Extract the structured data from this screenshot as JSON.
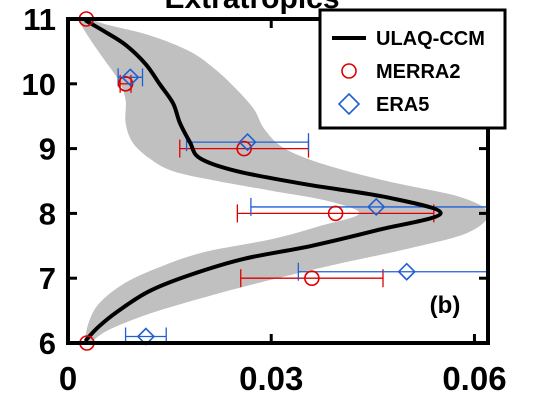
{
  "chart_data": {
    "type": "line",
    "title": "Extratropics",
    "panel_label": "(b)",
    "xlabel": "",
    "ylabel": "",
    "xlim": [
      0,
      0.062
    ],
    "ylim": [
      6,
      11
    ],
    "x_ticks": [
      0,
      0.03,
      0.06
    ],
    "x_tick_labels": [
      "0",
      "0.03",
      "0.06"
    ],
    "y_ticks": [
      6,
      7,
      8,
      9,
      10,
      11
    ],
    "y_tick_labels": [
      "6",
      "7",
      "8",
      "9",
      "10",
      "11"
    ],
    "grid": false,
    "legend_position": "top-right",
    "series": [
      {
        "name": "ULAQ-CCM",
        "kind": "line",
        "color": "#000000",
        "points": [
          [
            0.0027,
            6.05
          ],
          [
            0.0045,
            6.25
          ],
          [
            0.0075,
            6.5
          ],
          [
            0.012,
            6.8
          ],
          [
            0.018,
            7.05
          ],
          [
            0.026,
            7.3
          ],
          [
            0.036,
            7.5
          ],
          [
            0.046,
            7.75
          ],
          [
            0.055,
            8.0
          ],
          [
            0.047,
            8.25
          ],
          [
            0.035,
            8.45
          ],
          [
            0.025,
            8.65
          ],
          [
            0.0195,
            8.85
          ],
          [
            0.018,
            9.1
          ],
          [
            0.0165,
            9.4
          ],
          [
            0.0155,
            9.7
          ],
          [
            0.0135,
            10.0
          ],
          [
            0.0115,
            10.3
          ],
          [
            0.0085,
            10.6
          ],
          [
            0.0052,
            10.82
          ],
          [
            0.0027,
            10.97
          ]
        ],
        "band_color": "#c0c0c0",
        "band_low": [
          [
            0.0025,
            6.02
          ],
          [
            0.003,
            6.3
          ],
          [
            0.0045,
            6.6
          ],
          [
            0.008,
            6.9
          ],
          [
            0.013,
            7.15
          ],
          [
            0.02,
            7.4
          ],
          [
            0.03,
            7.6
          ],
          [
            0.037,
            7.8
          ],
          [
            0.043,
            8.0
          ],
          [
            0.038,
            8.2
          ],
          [
            0.03,
            8.35
          ],
          [
            0.022,
            8.5
          ],
          [
            0.0155,
            8.65
          ],
          [
            0.012,
            8.85
          ],
          [
            0.0095,
            9.1
          ],
          [
            0.0085,
            9.4
          ],
          [
            0.0085,
            9.75
          ],
          [
            0.0075,
            10.05
          ],
          [
            0.0055,
            10.35
          ],
          [
            0.0035,
            10.65
          ],
          [
            0.002,
            10.9
          ],
          [
            0.0018,
            11.0
          ]
        ],
        "band_high": [
          [
            0.0035,
            6.02
          ],
          [
            0.006,
            6.2
          ],
          [
            0.012,
            6.45
          ],
          [
            0.02,
            6.7
          ],
          [
            0.029,
            6.95
          ],
          [
            0.039,
            7.2
          ],
          [
            0.05,
            7.45
          ],
          [
            0.059,
            7.7
          ],
          [
            0.062,
            8.0
          ],
          [
            0.058,
            8.25
          ],
          [
            0.047,
            8.5
          ],
          [
            0.038,
            8.75
          ],
          [
            0.032,
            9.0
          ],
          [
            0.029,
            9.3
          ],
          [
            0.0275,
            9.6
          ],
          [
            0.025,
            9.9
          ],
          [
            0.022,
            10.2
          ],
          [
            0.018,
            10.5
          ],
          [
            0.012,
            10.75
          ],
          [
            0.0055,
            10.92
          ],
          [
            0.0035,
            11.0
          ]
        ]
      },
      {
        "name": "MERRA2",
        "kind": "points",
        "marker": "circle",
        "color": "#dd0000",
        "points": [
          {
            "x": 0.0028,
            "y": 6.0,
            "xerr": 0.0,
            "yerr": 0.0
          },
          {
            "x": 0.036,
            "y": 7.0,
            "xerr": 0.0105,
            "yerr": 0.0
          },
          {
            "x": 0.0395,
            "y": 8.0,
            "xerr": 0.0145,
            "yerr": 0.0
          },
          {
            "x": 0.026,
            "y": 9.0,
            "xerr": 0.0095,
            "yerr": 0.0
          },
          {
            "x": 0.0085,
            "y": 10.0,
            "xerr": 0.0008,
            "yerr": 0.0
          },
          {
            "x": 0.0027,
            "y": 11.0,
            "xerr": 0.0,
            "yerr": 0.0
          }
        ]
      },
      {
        "name": "ERA5",
        "kind": "points",
        "marker": "diamond",
        "color": "#1f5fd0",
        "points": [
          {
            "x": 0.0115,
            "y": 6.1,
            "xerr": 0.003,
            "yerr": 0.0
          },
          {
            "x": 0.05,
            "y": 7.1,
            "xerr": 0.016,
            "yerr": 0.0
          },
          {
            "x": 0.0455,
            "y": 8.1,
            "xerr": 0.0185,
            "yerr": 0.0
          },
          {
            "x": 0.0265,
            "y": 9.1,
            "xerr": 0.009,
            "yerr": 0.0
          },
          {
            "x": 0.0092,
            "y": 10.1,
            "xerr": 0.0018,
            "yerr": 0.0
          }
        ]
      }
    ]
  }
}
